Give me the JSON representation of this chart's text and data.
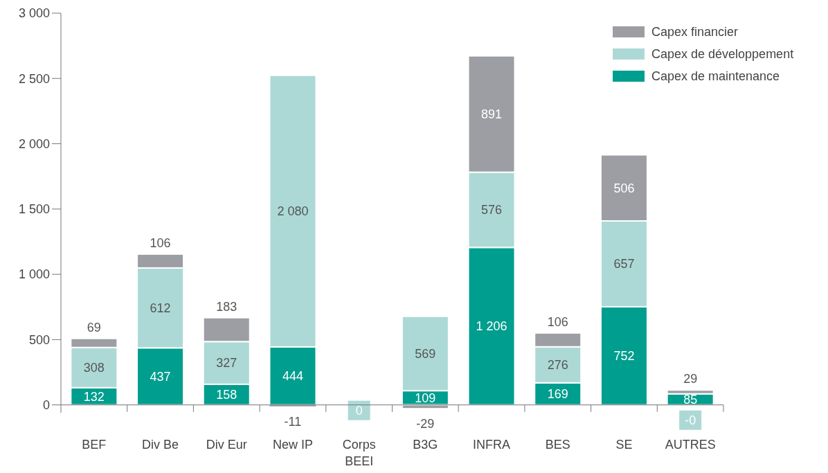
{
  "chart_data": {
    "type": "bar",
    "stacked": true,
    "categories": [
      "BEF",
      "Div Be",
      "Div Eur",
      "New IP",
      "Corps BEEI",
      "B3G",
      "INFRA",
      "BES",
      "SE",
      "AUTRES"
    ],
    "series": [
      {
        "name": "Capex de maintenance",
        "color": "#009e8e",
        "values": [
          132,
          437,
          158,
          444,
          null,
          109,
          1206,
          169,
          752,
          85
        ],
        "value_labels": [
          "132",
          "437",
          "158",
          "444",
          null,
          "109",
          "1 206",
          "169",
          "752",
          "85"
        ]
      },
      {
        "name": "Capex de développement",
        "color": "#acd9d6",
        "values": [
          308,
          612,
          327,
          2080,
          0,
          569,
          576,
          276,
          657,
          0
        ],
        "value_labels": [
          "308",
          "612",
          "327",
          "2 080",
          "0",
          "569",
          "576",
          "276",
          "657",
          "-0"
        ]
      },
      {
        "name": "Capex financier",
        "color": "#9c9ea3",
        "values": [
          69,
          106,
          183,
          -11,
          null,
          -29,
          891,
          106,
          506,
          29
        ],
        "value_labels": [
          "69",
          "106",
          "183",
          "-11",
          null,
          "-29",
          "891",
          "106",
          "506",
          "29"
        ]
      }
    ],
    "ylim": [
      -60,
      3000
    ],
    "yticks": [
      0,
      500,
      {
        "value": 1000,
        "label": "1 000"
      },
      {
        "value": 1500,
        "label": "1 500"
      },
      {
        "value": 2000,
        "label": "2 000"
      },
      {
        "value": 2500,
        "label": "2 500"
      },
      {
        "value": 3000,
        "label": "3 000"
      }
    ],
    "legend": "top right"
  }
}
